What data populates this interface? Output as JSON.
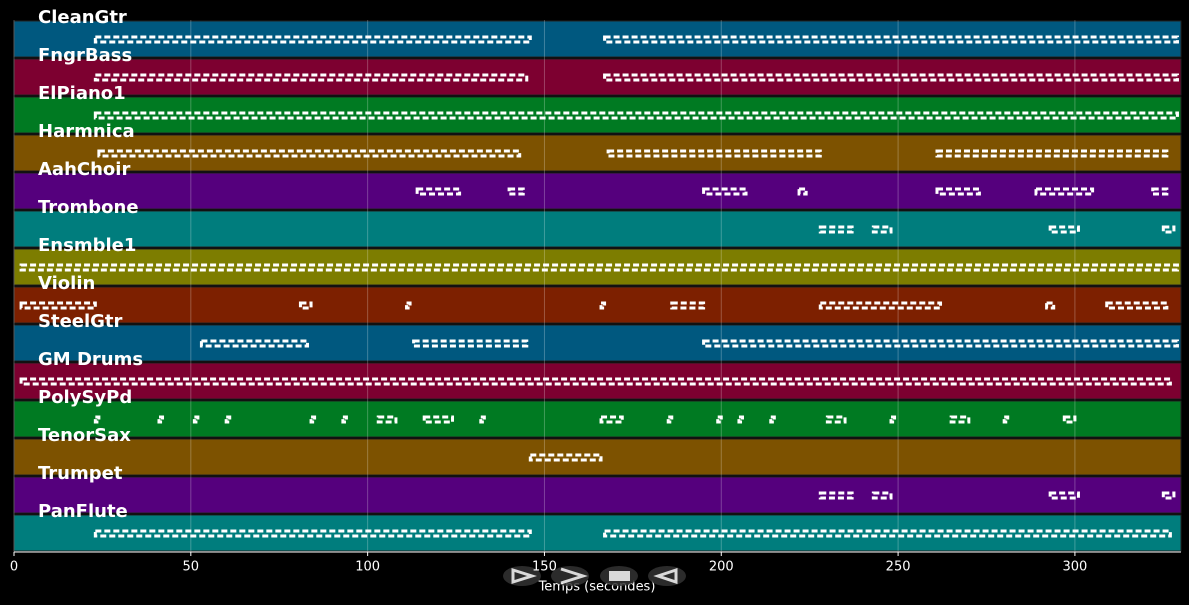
{
  "chart_data": {
    "type": "piano-roll",
    "x_label": "Temps (secondes)",
    "xlim": [
      0,
      330
    ],
    "xticks": [
      0,
      50,
      100,
      150,
      200,
      250,
      300
    ],
    "grid": true,
    "tracks": [
      {
        "name": "CleanGtr",
        "color": "#00587f",
        "spans": [
          [
            23,
            146
          ],
          [
            167,
            329
          ]
        ]
      },
      {
        "name": "FngrBass",
        "color": "#7d0030",
        "spans": [
          [
            23,
            145
          ],
          [
            167,
            329
          ]
        ]
      },
      {
        "name": "ElPiano1",
        "color": "#007a22",
        "spans": [
          [
            23,
            329
          ]
        ]
      },
      {
        "name": "Harmnica",
        "color": "#7d5200",
        "spans": [
          [
            24,
            143
          ],
          [
            168,
            228
          ],
          [
            261,
            326
          ]
        ]
      },
      {
        "name": "AahChoir",
        "color": "#55007d",
        "spans": [
          [
            114,
            126
          ],
          [
            140,
            144
          ],
          [
            195,
            207
          ],
          [
            222,
            224
          ],
          [
            261,
            273
          ],
          [
            289,
            305
          ],
          [
            322,
            326
          ]
        ]
      },
      {
        "name": "Trombone",
        "color": "#007d7d",
        "spans": [
          [
            228,
            237
          ],
          [
            243,
            248
          ],
          [
            293,
            301
          ],
          [
            325,
            328
          ]
        ]
      },
      {
        "name": "Ensmble1",
        "color": "#7d7d00",
        "spans": [
          [
            2,
            329
          ]
        ]
      },
      {
        "name": "Violin",
        "color": "#7d2000",
        "spans": [
          [
            2,
            23
          ],
          [
            81,
            84
          ],
          [
            111,
            112
          ],
          [
            166,
            167
          ],
          [
            186,
            195
          ],
          [
            228,
            262
          ],
          [
            292,
            294
          ],
          [
            309,
            326
          ]
        ]
      },
      {
        "name": "SteelGtr",
        "color": "#00587f",
        "spans": [
          [
            53,
            83
          ],
          [
            113,
            145
          ],
          [
            195,
            329
          ]
        ]
      },
      {
        "name": "GM Drums",
        "color": "#7d0030",
        "spans": [
          [
            2,
            327
          ]
        ]
      },
      {
        "name": "PolySyPd",
        "color": "#007a22",
        "spans": [
          [
            23,
            24
          ],
          [
            41,
            42
          ],
          [
            51,
            52
          ],
          [
            60,
            61
          ],
          [
            84,
            85
          ],
          [
            93,
            94
          ],
          [
            103,
            108
          ],
          [
            116,
            124
          ],
          [
            132,
            133
          ],
          [
            166,
            172
          ],
          [
            185,
            186
          ],
          [
            199,
            200
          ],
          [
            205,
            206
          ],
          [
            214,
            215
          ],
          [
            230,
            235
          ],
          [
            248,
            249
          ],
          [
            265,
            270
          ],
          [
            280,
            281
          ],
          [
            297,
            300
          ]
        ]
      },
      {
        "name": "TenorSax",
        "color": "#7d5200",
        "spans": [
          [
            146,
            166
          ]
        ]
      },
      {
        "name": "Trumpet",
        "color": "#55007d",
        "spans": [
          [
            228,
            237
          ],
          [
            243,
            248
          ],
          [
            293,
            301
          ],
          [
            325,
            328
          ]
        ]
      },
      {
        "name": "PanFlute",
        "color": "#007d7d",
        "spans": [
          [
            23,
            146
          ],
          [
            167,
            327
          ]
        ]
      }
    ]
  }
}
